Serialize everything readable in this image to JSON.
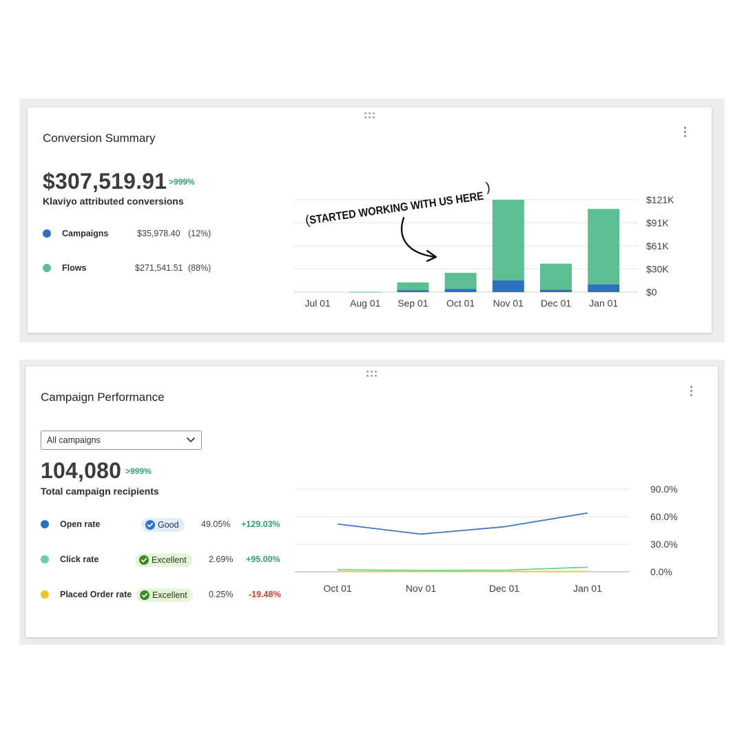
{
  "conversion_summary": {
    "title": "Conversion Summary",
    "total": "$307,519.91",
    "delta": ">999%",
    "subtitle": "Klaviyo attributed conversions",
    "legend": [
      {
        "label": "Campaigns",
        "value": "$35,978.40",
        "pct": "(12%)",
        "color": "#2f6fbf"
      },
      {
        "label": "Flows",
        "value": "$271,541.51",
        "pct": "(88%)",
        "color": "#5bbf91"
      }
    ],
    "annotation": {
      "open_paren": "(",
      "text": "STARTED WORKING WITH US HERE",
      "close_paren": ")"
    }
  },
  "campaign_performance": {
    "title": "Campaign Performance",
    "dropdown_value": "All campaigns",
    "total": "104,080",
    "delta": ">999%",
    "subtitle": "Total campaign recipients",
    "metrics": [
      {
        "label": "Open rate",
        "badge": "Good",
        "badge_type": "good",
        "value": "49.05%",
        "change": "+129.03%",
        "change_type": "pos",
        "color": "#2f6fbf"
      },
      {
        "label": "Click rate",
        "badge": "Excellent",
        "badge_type": "excellent",
        "value": "2.69%",
        "change": "+95.00%",
        "change_type": "pos",
        "color": "#6fcfa3"
      },
      {
        "label": "Placed Order rate",
        "badge": "Excellent",
        "badge_type": "excellent",
        "value": "0.25%",
        "change": "-19.48%",
        "change_type": "neg",
        "color": "#efc62e"
      }
    ]
  },
  "chart_data": [
    {
      "type": "bar",
      "stacked": true,
      "categories": [
        "Jul 01",
        "Aug 01",
        "Sep 01",
        "Oct 01",
        "Nov 01",
        "Dec 01",
        "Jan 01"
      ],
      "series": [
        {
          "name": "Campaigns",
          "values": [
            0,
            0,
            2600,
            4200,
            15300,
            3100,
            10200
          ],
          "color": "#2f6fbf"
        },
        {
          "name": "Flows",
          "values": [
            0,
            300,
            10000,
            21000,
            105700,
            34200,
            98800
          ],
          "color": "#5bbf91"
        }
      ],
      "y_ticks": [
        "$0",
        "$30K",
        "$61K",
        "$91K",
        "$121K"
      ],
      "ylim": [
        0,
        121000
      ],
      "y_axis_side": "right",
      "grid": true
    },
    {
      "type": "line",
      "categories": [
        "Oct 01",
        "Nov 01",
        "Dec 01",
        "Jan 01"
      ],
      "series": [
        {
          "name": "Open rate",
          "values": [
            52,
            41,
            49,
            64
          ],
          "color": "#3c77c4"
        },
        {
          "name": "Click rate",
          "values": [
            2.3,
            1.4,
            1.7,
            5.0
          ],
          "color": "#6fcfa3"
        },
        {
          "name": "Placed Order rate",
          "values": [
            0.3,
            0.2,
            0.2,
            0.3
          ],
          "color": "#efc62e"
        }
      ],
      "y_ticks": [
        "0.0%",
        "30.0%",
        "60.0%",
        "90.0%"
      ],
      "ylim": [
        0,
        90
      ],
      "y_axis_side": "right",
      "grid": true
    }
  ]
}
